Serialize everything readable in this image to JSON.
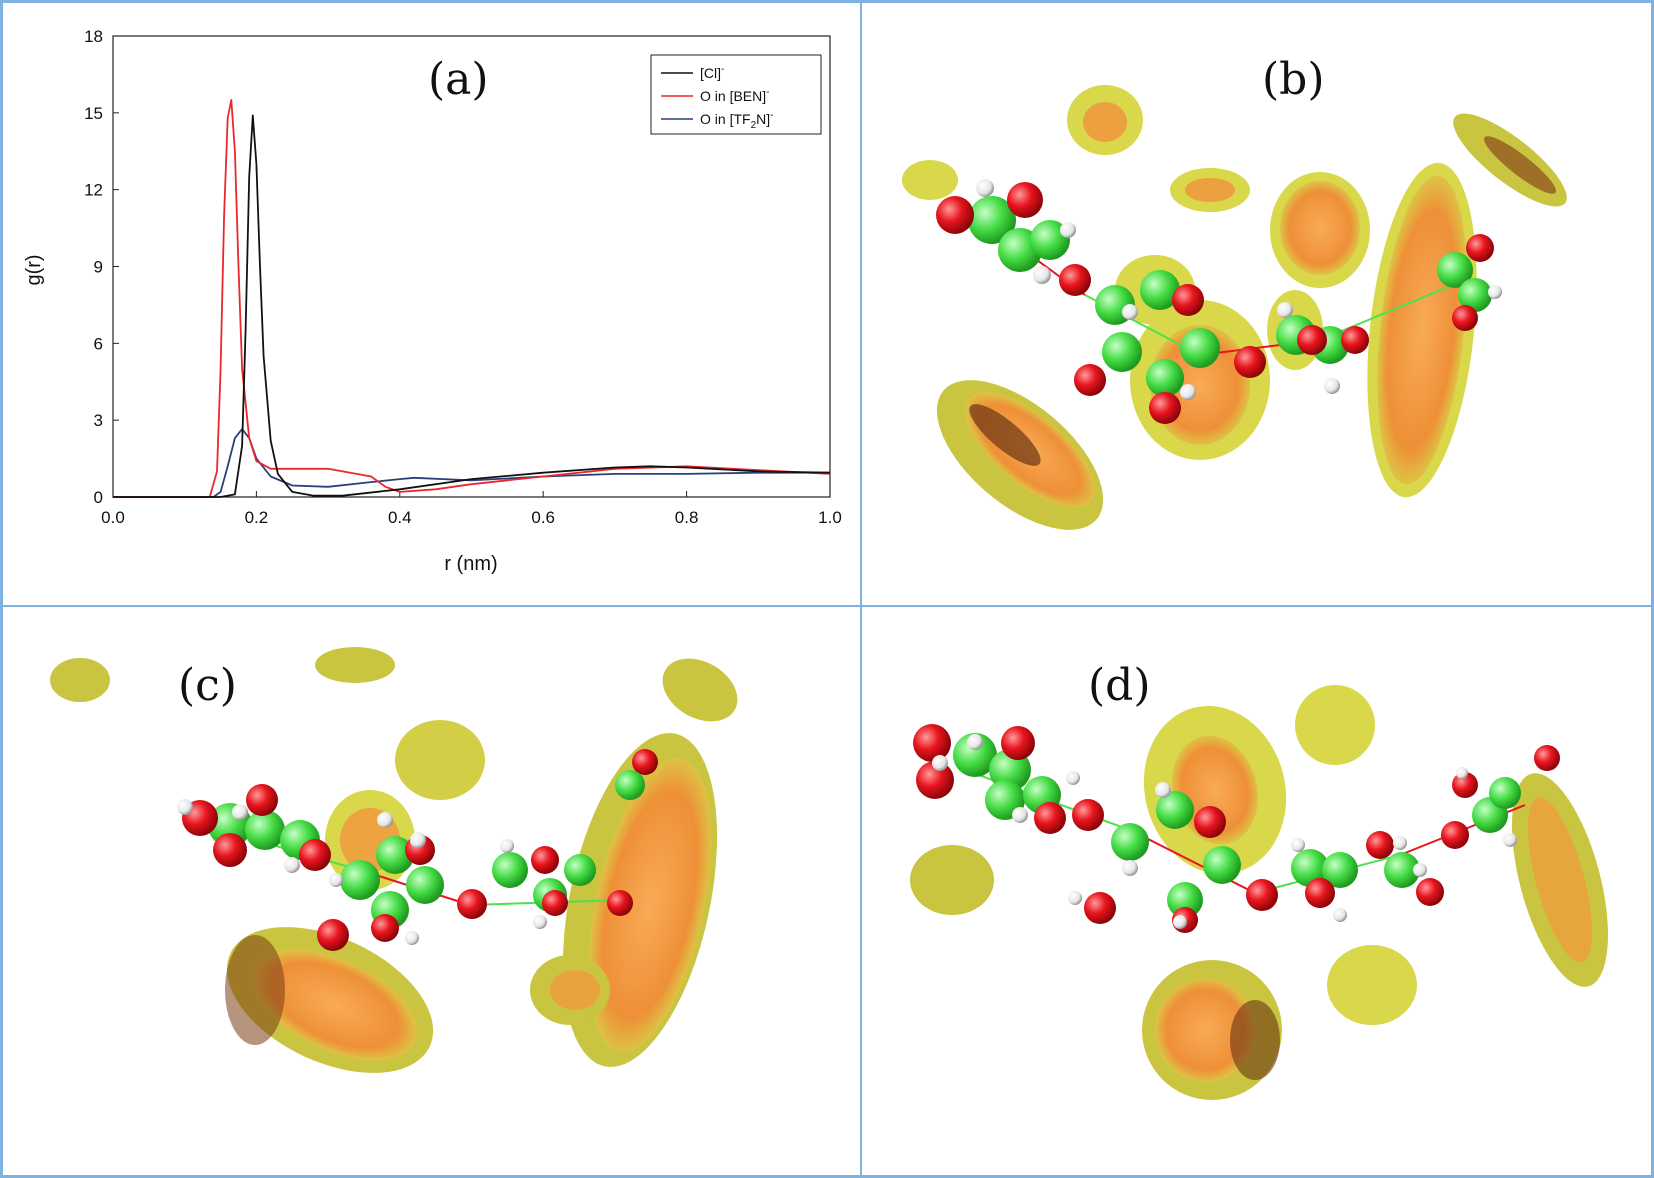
{
  "panels": {
    "a": {
      "label": "(a)"
    },
    "b": {
      "label": "(b)"
    },
    "c": {
      "label": "(c)"
    },
    "d": {
      "label": "(d)"
    }
  },
  "colors": {
    "border": "#7fb2e0",
    "cl": "#111111",
    "ben": "#e8282c",
    "tf2n": "#2c3f7a",
    "isosurface_outer": "#d8d84a",
    "isosurface_inner": "#f09a3e",
    "atom_c": "#4ee04e",
    "atom_o": "#e8151e",
    "atom_h": "#f4f4f4"
  },
  "chart_data": {
    "type": "line",
    "xlabel": "r (nm)",
    "ylabel": "g(r)",
    "xlim": [
      0.0,
      1.0
    ],
    "ylim": [
      0,
      18
    ],
    "xticks": [
      "0.0",
      "0.2",
      "0.4",
      "0.6",
      "0.8",
      "1.0"
    ],
    "yticks": [
      "0",
      "3",
      "6",
      "9",
      "12",
      "15",
      "18"
    ],
    "legend": "top-right",
    "series": [
      {
        "name": "[Cl]",
        "superscript": "-",
        "color_key": "cl",
        "x": [
          0.0,
          0.15,
          0.17,
          0.18,
          0.185,
          0.19,
          0.195,
          0.2,
          0.205,
          0.21,
          0.22,
          0.23,
          0.25,
          0.28,
          0.32,
          0.4,
          0.5,
          0.6,
          0.7,
          0.75,
          0.8,
          0.9,
          1.0
        ],
        "y": [
          0,
          0,
          0.1,
          2.0,
          6.5,
          12.5,
          14.9,
          13.0,
          9.0,
          5.5,
          2.2,
          0.9,
          0.2,
          0.05,
          0.05,
          0.3,
          0.7,
          0.95,
          1.15,
          1.2,
          1.15,
          1.0,
          0.95
        ]
      },
      {
        "name": "O in [BEN]",
        "superscript": "-",
        "color_key": "ben",
        "x": [
          0.0,
          0.135,
          0.145,
          0.15,
          0.155,
          0.16,
          0.165,
          0.17,
          0.175,
          0.18,
          0.19,
          0.2,
          0.22,
          0.25,
          0.3,
          0.36,
          0.38,
          0.4,
          0.45,
          0.5,
          0.6,
          0.7,
          0.8,
          0.9,
          1.0
        ],
        "y": [
          0,
          0,
          1.0,
          5.0,
          11.0,
          14.8,
          15.5,
          13.5,
          9.0,
          5.0,
          2.3,
          1.4,
          1.1,
          1.1,
          1.1,
          0.8,
          0.4,
          0.2,
          0.3,
          0.5,
          0.8,
          1.1,
          1.2,
          1.05,
          0.9
        ]
      },
      {
        "name": "O in [TF2N]",
        "legend_main": "O in [TF",
        "legend_sub": "2",
        "legend_tail": "N]",
        "superscript": "-",
        "color_key": "tf2n",
        "x": [
          0.0,
          0.14,
          0.15,
          0.16,
          0.17,
          0.18,
          0.19,
          0.2,
          0.22,
          0.25,
          0.3,
          0.35,
          0.4,
          0.42,
          0.5,
          0.6,
          0.7,
          0.8,
          0.9,
          1.0
        ],
        "y": [
          0,
          0,
          0.2,
          1.2,
          2.3,
          2.65,
          2.3,
          1.5,
          0.8,
          0.45,
          0.4,
          0.55,
          0.7,
          0.75,
          0.65,
          0.8,
          0.9,
          0.9,
          0.95,
          0.95
        ]
      }
    ]
  }
}
